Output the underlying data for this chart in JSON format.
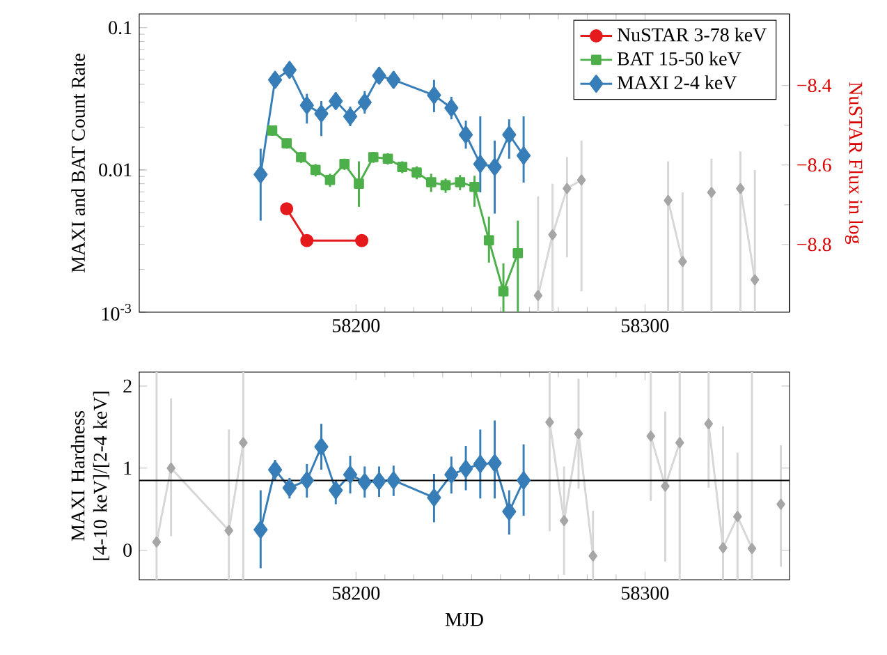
{
  "chart_data": [
    {
      "type": "line",
      "ylabel": "MAXI and BAT Count Rate",
      "y2label": "NuSTAR Flux in log",
      "log": "y",
      "legend": "top right",
      "xlim": [
        58125,
        58350
      ],
      "xticks": [
        58200,
        58300
      ],
      "ylim": [
        0.001,
        0.125
      ],
      "yticks": [
        {
          "value": 0.001,
          "label": "10$^{-3}$"
        },
        0.01,
        0.1
      ],
      "y2lim": [
        -8.97,
        -8.22
      ],
      "y2ticks": [
        {
          "value": -8.8,
          "label": "−8.8"
        },
        {
          "value": -8.6,
          "label": "−8.6"
        },
        {
          "value": -8.4,
          "label": "−8.4"
        }
      ],
      "series": [
        {
          "color": "#a6a6a6",
          "marker": "diamond",
          "x": [
            58263,
            58268,
            58273,
            58278,
            58293,
            58308,
            58313,
            58318,
            58323,
            58328,
            58333,
            58338
          ],
          "values": [
            0.00131,
            0.0035,
            0.0074,
            0.0085,
            null,
            0.0061,
            0.00227,
            null,
            0.00695,
            null,
            0.0074,
            0.00169
          ],
          "errors": [
            [
              0.001,
              0.0065
            ],
            [
              0.001,
              0.008
            ],
            [
              0.00243,
              0.0123
            ],
            [
              0.0014,
              0.0161
            ],
            null,
            [
              0.001,
              0.0115
            ],
            [
              0.001,
              0.00695
            ],
            null,
            [
              0.001,
              0.012
            ],
            null,
            [
              0.001,
              0.0135
            ],
            [
              0.001,
              0.01
            ]
          ]
        },
        {
          "name": "NuSTAR 3-78 keV",
          "color": "#e41a1c",
          "marker": "circle",
          "axis": "y2",
          "x": [
            58176,
            58183,
            58202
          ],
          "values": [
            -8.71,
            -8.79,
            -8.79
          ]
        },
        {
          "name": "BAT 15-50 keV",
          "color": "#4daf4a",
          "marker": "square",
          "x": [
            58171,
            58176,
            58181,
            58186,
            58191,
            58196,
            58201,
            58206,
            58211,
            58216,
            58221,
            58226,
            58231,
            58236,
            58241,
            58246,
            58251,
            58256
          ],
          "values": [
            0.0189,
            0.0154,
            0.0123,
            0.01,
            0.0085,
            0.011,
            0.008,
            0.0123,
            0.012,
            0.0105,
            0.0096,
            0.0082,
            0.0078,
            0.0082,
            0.0076,
            0.0032,
            0.0014,
            0.0026
          ],
          "errors": [
            0.0015,
            0.0013,
            0.0011,
            0.001,
            0.0009,
            0.001,
            [
              0.0055,
              0.0115
            ],
            0.0011,
            0.0011,
            0.001,
            0.001,
            0.0012,
            0.0009,
            0.001,
            [
              0.0055,
              0.0091
            ],
            [
              0.00223,
              0.0047
            ],
            [
              0.001,
              0.0022
            ],
            [
              0.001,
              0.0044
            ]
          ]
        },
        {
          "name": "MAXI 2-4 keV",
          "color": "#377eb8",
          "marker": "diamond",
          "x": [
            58167,
            58172,
            58177,
            58183,
            58188,
            58193,
            58198,
            58203,
            58208,
            58213,
            58227,
            58233,
            58238,
            58243,
            58248,
            58253,
            58258
          ],
          "values": [
            0.0093,
            0.043,
            0.0505,
            0.0285,
            0.0249,
            0.0305,
            0.0238,
            0.0299,
            0.046,
            0.043,
            0.0335,
            0.0273,
            0.0177,
            0.011,
            0.0105,
            0.0177,
            0.0126
          ],
          "errors": [
            [
              0.0044,
              0.0141
            ],
            [
              0.0384,
              0.0482
            ],
            [
              0.045,
              0.0565
            ],
            [
              0.0212,
              0.0343
            ],
            [
              0.0173,
              0.0305
            ],
            [
              0.0267,
              0.0351
            ],
            [
              0.0203,
              0.0279
            ],
            [
              0.0249,
              0.0358
            ],
            [
              0.0402,
              0.0528
            ],
            [
              0.0375,
              0.0493
            ],
            [
              0.0255,
              0.043
            ],
            [
              0.0227,
              0.0327
            ],
            [
              0.0141,
              0.0222
            ],
            [
              0.00695,
              0.0238
            ],
            [
              0.00493,
              0.0161
            ],
            [
              0.012,
              0.0227
            ],
            [
              0.00815,
              0.0238
            ]
          ]
        }
      ]
    },
    {
      "type": "line",
      "ylabel": "MAXI Hardness [4-10 keV]/[2-4 keV]",
      "xlabel": "MJD",
      "xlim": [
        58125,
        58350
      ],
      "xticks": [
        58200,
        58300
      ],
      "ylim": [
        -0.36,
        2.17
      ],
      "yticks": [
        0,
        1,
        2
      ],
      "ref_lines": [
        {
          "axis": "y",
          "value": 0.85,
          "color": "#000000"
        }
      ],
      "series": [
        {
          "color": "#a6a6a6",
          "marker": "diamond",
          "x": [
            58131,
            58136,
            58156,
            58161,
            58200,
            58267,
            58272,
            58277,
            58282,
            58292,
            58302,
            58307,
            58312,
            58317,
            58322,
            58327,
            58332,
            58337,
            58342,
            58347
          ],
          "values": [
            0.1,
            1.0,
            0.24,
            1.31,
            null,
            1.56,
            0.36,
            1.42,
            -0.07,
            null,
            1.39,
            0.78,
            1.31,
            null,
            1.54,
            0.03,
            0.41,
            0.02,
            null,
            0.56
          ],
          "errors": [
            [
              -0.36,
              2.17
            ],
            [
              0.17,
              1.85
            ],
            [
              -0.36,
              1.47
            ],
            [
              -0.36,
              2.17
            ],
            null,
            [
              0.23,
              2.17
            ],
            [
              -0.3,
              1.02
            ],
            [
              0.75,
              2.09
            ],
            [
              -0.36,
              0.48
            ],
            null,
            [
              0.6,
              2.17
            ],
            [
              -0.14,
              1.69
            ],
            [
              -0.36,
              2.17
            ],
            null,
            [
              0.76,
              2.17
            ],
            [
              -0.36,
              1.51
            ],
            [
              -0.36,
              1.19
            ],
            [
              -0.36,
              2.17
            ],
            null,
            [
              -0.2,
              1.28
            ]
          ]
        },
        {
          "color": "#377eb8",
          "marker": "diamond",
          "x": [
            58167,
            58172,
            58177,
            58183,
            58188,
            58193,
            58198,
            58203,
            58208,
            58213,
            58227,
            58233,
            58238,
            58243,
            58248,
            58253,
            58258
          ],
          "values": [
            0.25,
            0.98,
            0.76,
            0.85,
            1.26,
            0.73,
            0.92,
            0.83,
            0.84,
            0.85,
            0.64,
            0.92,
            0.99,
            1.05,
            1.06,
            0.47,
            0.85
          ],
          "errors": [
            [
              -0.22,
              0.73
            ],
            [
              0.85,
              1.1
            ],
            [
              0.63,
              0.88
            ],
            [
              0.64,
              1.05
            ],
            [
              0.98,
              1.54
            ],
            [
              0.56,
              0.85
            ],
            [
              0.69,
              1.15
            ],
            [
              0.64,
              1.02
            ],
            [
              0.65,
              1.02
            ],
            [
              0.66,
              1.03
            ],
            [
              0.34,
              0.93
            ],
            [
              0.69,
              1.14
            ],
            [
              0.73,
              1.27
            ],
            [
              0.63,
              1.47
            ],
            [
              0.63,
              1.58
            ],
            [
              0.19,
              0.73
            ],
            [
              0.42,
              1.29
            ]
          ]
        }
      ]
    }
  ]
}
